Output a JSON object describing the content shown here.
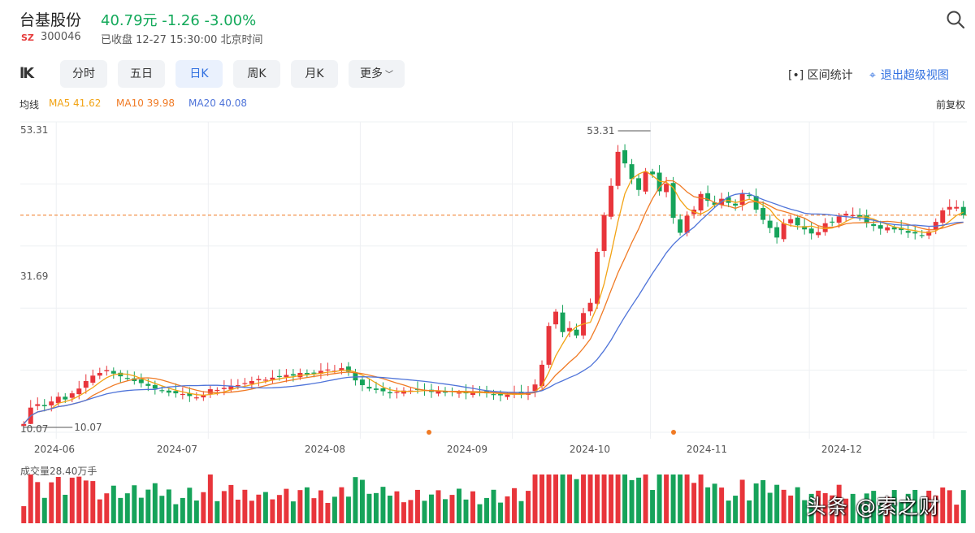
{
  "header": {
    "stock_name": "台基股份",
    "price_line": "40.79元 -1.26 -3.00%",
    "market": "SZ",
    "code": "300046",
    "status": "已收盘 12-27 15:30:00 北京时间"
  },
  "toolbar": {
    "kline_label": "lK",
    "tabs": [
      {
        "label": "分时"
      },
      {
        "label": "五日"
      },
      {
        "label": "日K"
      },
      {
        "label": "周K"
      },
      {
        "label": "月K"
      },
      {
        "label": "更多"
      }
    ],
    "active_tab": "日K",
    "range_stat_label": "[•] 区间统计",
    "exit_label": "退出超级视图"
  },
  "ma_bar": {
    "label": "均线",
    "ma5": "MA5 41.62",
    "ma10": "MA10 39.98",
    "ma20": "MA20 40.08",
    "fq": "前复权"
  },
  "colors": {
    "up": "#e8353b",
    "down": "#16a35a",
    "ma5": "#f2a314",
    "ma10": "#f07a24",
    "ma20": "#4f74d9",
    "accent": "#2f6fe0"
  },
  "chart_data": {
    "type": "candlestick",
    "y_labels": [
      "53.31",
      "31.69",
      "10.07"
    ],
    "high_label": "53.31",
    "low_label": "10.07",
    "x_labels": [
      "2024-06",
      "2024-07",
      "2024-08",
      "2024-09",
      "2024-10",
      "2024-11",
      "2024-12"
    ],
    "ylim": [
      10.07,
      53.31
    ],
    "last_close": 40.79,
    "closes": [
      10.1,
      12.5,
      13.0,
      12.7,
      13.4,
      14.1,
      13.7,
      14.6,
      15.3,
      16.4,
      17.2,
      17.6,
      18.0,
      17.5,
      17.1,
      16.8,
      16.4,
      16.1,
      15.7,
      15.3,
      15.0,
      14.7,
      14.6,
      14.5,
      14.2,
      14.0,
      14.3,
      15.2,
      15.1,
      15.4,
      15.7,
      15.8,
      16.1,
      16.4,
      16.7,
      16.6,
      16.9,
      17.1,
      17.3,
      17.2,
      17.6,
      17.4,
      17.6,
      17.9,
      18.1,
      17.9,
      18.3,
      17.8,
      16.5,
      15.8,
      15.3,
      15.1,
      14.9,
      14.6,
      14.8,
      15.0,
      15.0,
      15.2,
      15.0,
      14.8,
      14.9,
      14.7,
      14.8,
      14.7,
      14.6,
      14.8,
      14.7,
      14.6,
      14.4,
      14.3,
      14.4,
      14.6,
      14.5,
      14.8,
      15.9,
      18.8,
      24.5,
      26.6,
      23.6,
      24.2,
      23.1,
      26.4,
      27.9,
      35.4,
      40.8,
      45.1,
      50.1,
      48.4,
      46.1,
      44.5,
      47.2,
      46.8,
      44.3,
      45.4,
      40.4,
      38.2,
      40.7,
      41.6,
      43.9,
      42.9,
      42.3,
      43.2,
      42.6,
      42.2,
      44.0,
      43.6,
      41.6,
      40.1,
      38.9,
      37.5,
      39.6,
      40.2,
      39.3,
      38.7,
      38.1,
      38.3,
      39.6,
      39.8,
      40.6,
      41.0,
      40.8,
      40.5,
      39.6,
      39.2,
      38.8,
      39.0,
      38.7,
      38.6,
      38.2,
      38.1,
      37.8,
      38.4,
      39.8,
      41.5,
      42.0,
      42.0,
      40.8
    ],
    "volume_label": "成交量28.40万手"
  },
  "watermark": "头条 @索之财"
}
